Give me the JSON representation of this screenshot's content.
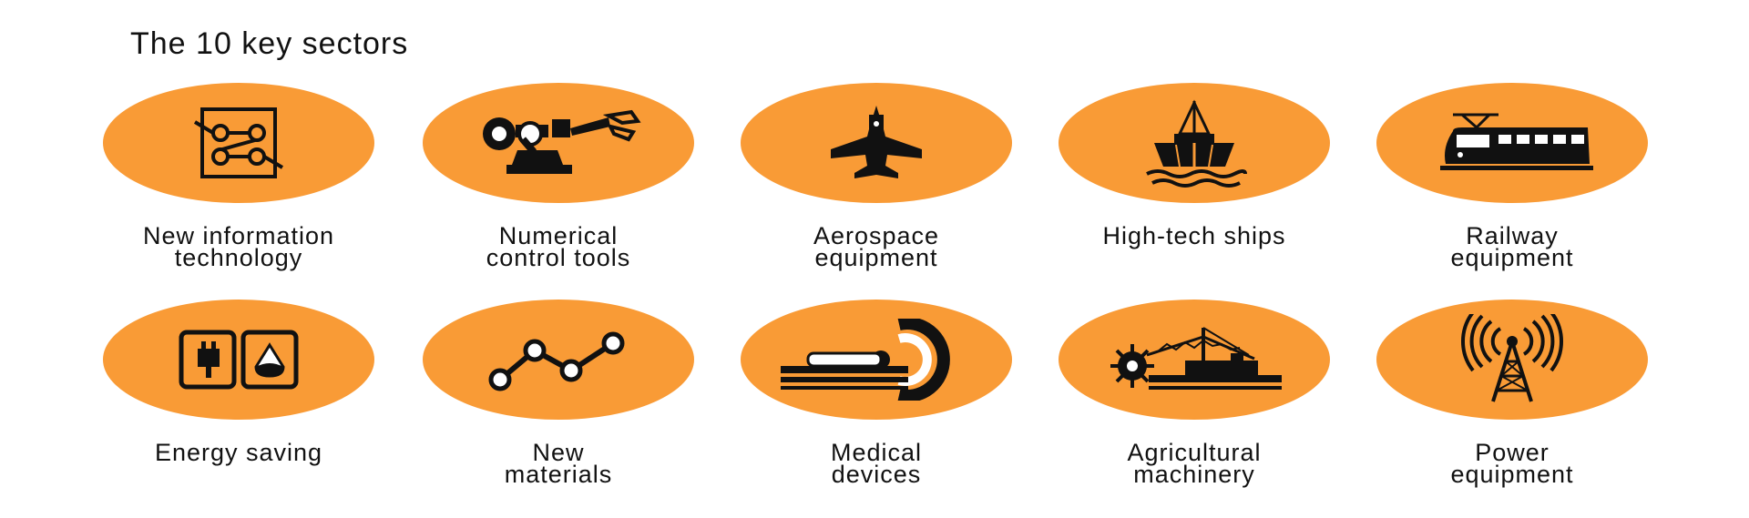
{
  "title": "The 10 key sectors",
  "accent_color": "#f99b36",
  "sectors": [
    {
      "icon": "circuit-board-icon",
      "label_lines": [
        "New information",
        "technology"
      ]
    },
    {
      "icon": "robot-arm-icon",
      "label_lines": [
        "Numerical",
        "control tools"
      ]
    },
    {
      "icon": "fighter-jet-icon",
      "label_lines": [
        "Aerospace",
        "equipment"
      ]
    },
    {
      "icon": "ship-icon",
      "label_lines": [
        "High-tech ships",
        ""
      ]
    },
    {
      "icon": "train-icon",
      "label_lines": [
        "Railway",
        "equipment"
      ]
    },
    {
      "icon": "battery-plug-icon",
      "label_lines": [
        "Energy saving",
        ""
      ]
    },
    {
      "icon": "molecule-chain-icon",
      "label_lines": [
        "New",
        "materials"
      ]
    },
    {
      "icon": "mri-scanner-icon",
      "label_lines": [
        "Medical",
        "devices"
      ]
    },
    {
      "icon": "harvester-icon",
      "label_lines": [
        "Agricultural",
        "machinery"
      ]
    },
    {
      "icon": "radio-tower-icon",
      "label_lines": [
        "Power",
        "equipment"
      ]
    }
  ]
}
